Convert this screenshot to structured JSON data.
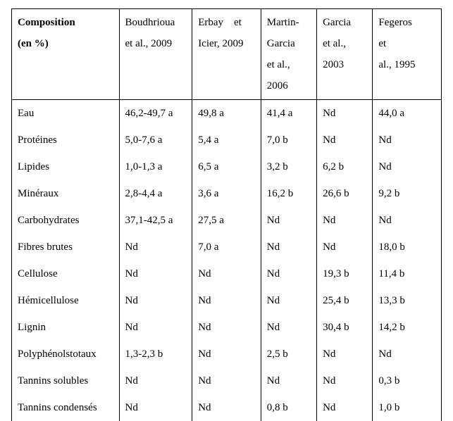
{
  "table": {
    "header": {
      "cells": [
        {
          "lines": [
            "Composition",
            "(en %)"
          ],
          "bold": true
        },
        {
          "lines": [
            "Boudhrioua",
            "et al., 2009"
          ],
          "bold": false
        },
        {
          "lines": [
            "Erbay    et",
            "Icier, 2009"
          ],
          "bold": false
        },
        {
          "lines": [
            "Martin-",
            "Garcia",
            "et al.,",
            "2006"
          ],
          "bold": false
        },
        {
          "lines": [
            "Garcia",
            "et al.,",
            "2003"
          ],
          "bold": false
        },
        {
          "lines": [
            "Fegeros",
            "et",
            "al., 1995"
          ],
          "bold": false
        }
      ]
    },
    "rows": [
      [
        "Eau",
        "46,2-49,7 a",
        "49,8 a",
        "41,4 a",
        "Nd",
        "44,0 a"
      ],
      [
        "Protéines",
        "5,0-7,6 a",
        "5,4 a",
        "7,0 b",
        "Nd",
        "Nd"
      ],
      [
        "Lipides",
        "1,0-1,3 a",
        "6,5 a",
        "3,2 b",
        "6,2 b",
        "Nd"
      ],
      [
        "Minéraux",
        "2,8-4,4 a",
        "3,6 a",
        "16,2 b",
        "26,6 b",
        "9,2 b"
      ],
      [
        "Carbohydrates",
        "37,1-42,5 a",
        "27,5 a",
        "Nd",
        "Nd",
        "Nd"
      ],
      [
        "Fibres brutes",
        "Nd",
        "7,0 a",
        "Nd",
        "Nd",
        "18,0 b"
      ],
      [
        "Cellulose",
        "Nd",
        "Nd",
        "Nd",
        "19,3 b",
        "11,4 b"
      ],
      [
        "Hémicellulose",
        "Nd",
        "Nd",
        "Nd",
        "25,4 b",
        "13,3 b"
      ],
      [
        "Lignin",
        "Nd",
        "Nd",
        "Nd",
        "30,4 b",
        "14,2 b"
      ],
      [
        "Polyphénolstotaux",
        "1,3-2,3 b",
        "Nd",
        "2,5 b",
        "Nd",
        "Nd"
      ],
      [
        "Tannins solubles",
        "Nd",
        "Nd",
        "Nd",
        "Nd",
        "0,3 b"
      ],
      [
        "Tannins condensés",
        "Nd",
        "Nd",
        "0,8 b",
        "Nd",
        "1,0 b"
      ]
    ]
  },
  "colors": {
    "text": "#000000",
    "background": "#ffffff",
    "border": "#000000"
  },
  "typography": {
    "font_family": "Times New Roman",
    "font_size_pt": 11,
    "line_height": 2.0
  }
}
